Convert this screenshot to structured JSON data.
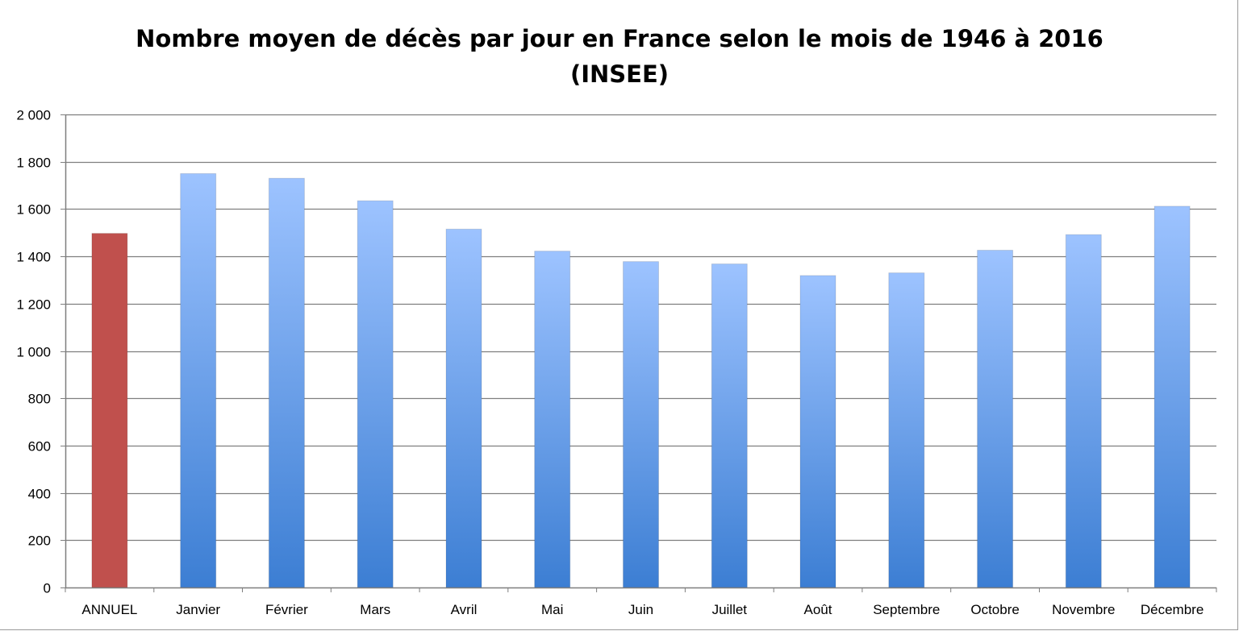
{
  "chart_data": {
    "type": "bar",
    "title": "Nombre moyen de décès par jour en France selon le mois de 1946 à 2016",
    "subtitle": "(INSEE)",
    "categories": [
      "ANNUEL",
      "Janvier",
      "Février",
      "Mars",
      "Avril",
      "Mai",
      "Juin",
      "Juillet",
      "Août",
      "Septembre",
      "Octobre",
      "Novembre",
      "Décembre"
    ],
    "values": [
      1497,
      1750,
      1730,
      1635,
      1515,
      1422,
      1378,
      1368,
      1319,
      1330,
      1426,
      1492,
      1612
    ],
    "ylim": [
      0,
      2000
    ],
    "yticks": [
      0,
      200,
      400,
      600,
      800,
      1000,
      1200,
      1400,
      1600,
      1800,
      2000
    ],
    "ytick_labels": [
      "0",
      "200",
      "400",
      "600",
      "800",
      "1 000",
      "1 200",
      "1 400",
      "1 600",
      "1 800",
      "2 000"
    ],
    "xlabel": "",
    "ylabel": "",
    "grid": true,
    "legend": "none",
    "colors": {
      "highlight_bar": "#C0504D",
      "bar_top": "#9DC3FF",
      "bar_bottom": "#3C7ED3",
      "grid": "#7F7F7F"
    }
  }
}
